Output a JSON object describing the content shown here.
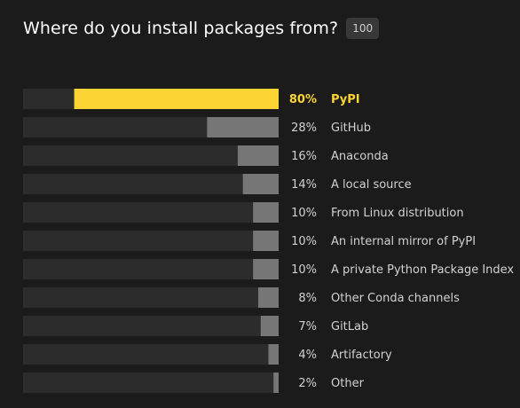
{
  "header": {
    "title": "Where do you install packages from?",
    "count_badge": "100"
  },
  "colors": {
    "background": "#1b1b1b",
    "track": "#2c2c2c",
    "bar": "#767676",
    "highlight": "#fcd535",
    "text": "#d2d2d2"
  },
  "chart_data": {
    "type": "bar",
    "orientation": "horizontal",
    "bar_direction": "right-to-left",
    "xlim": [
      0,
      100
    ],
    "highlighted_category": "PyPI",
    "categories": [
      "PyPI",
      "GitHub",
      "Anaconda",
      "A local source",
      "From Linux distribution",
      "An internal mirror of PyPI",
      "A private Python Package Index",
      "Other Conda channels",
      "GitLab",
      "Artifactory",
      "Other"
    ],
    "values": [
      80,
      28,
      16,
      14,
      10,
      10,
      10,
      8,
      7,
      4,
      2
    ],
    "value_labels": [
      "80%",
      "28%",
      "16%",
      "14%",
      "10%",
      "10%",
      "10%",
      "8%",
      "7%",
      "4%",
      "2%"
    ]
  }
}
